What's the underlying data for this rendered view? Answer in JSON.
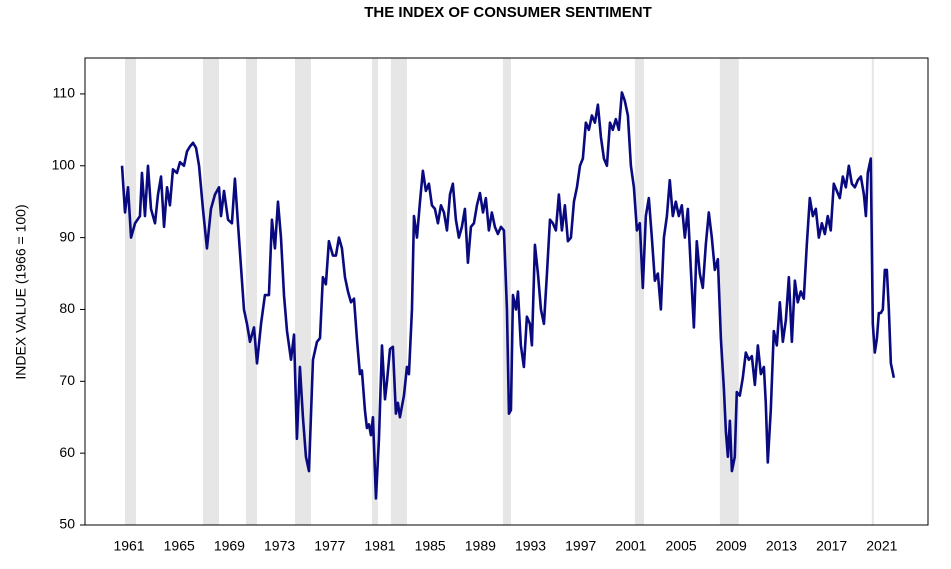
{
  "chart_data": {
    "type": "line",
    "title": "THE INDEX OF CONSUMER SENTIMENT",
    "y_label": "INDEX VALUE (1966 = 100)",
    "color": "#0a0a80",
    "shade_color": "#e6e6e6",
    "shaded_periods": [
      [
        1960.68,
        1961.56
      ],
      [
        1966.89,
        1968.17
      ],
      [
        1970.32,
        1971.2
      ],
      [
        1974.23,
        1975.5
      ],
      [
        1980.36,
        1980.84
      ],
      [
        1981.87,
        1983.15
      ],
      [
        1990.8,
        1991.44
      ],
      [
        2001.32,
        2002.04
      ],
      [
        2008.09,
        2009.6
      ],
      [
        2020.2,
        2020.36
      ]
    ],
    "xlim": [
      1957.49,
      2024.68
    ],
    "xticks": [
      1961,
      1965,
      1969,
      1973,
      1977,
      1981,
      1985,
      1989,
      1993,
      1997,
      2001,
      2005,
      2009,
      2013,
      2017,
      2021
    ],
    "ylim": [
      50,
      115
    ],
    "yticks": [
      50,
      60,
      70,
      80,
      90,
      100,
      110
    ],
    "x": [
      1960.44,
      1960.68,
      1960.92,
      1961.16,
      1961.48,
      1961.87,
      1962.03,
      1962.27,
      1962.51,
      1962.75,
      1963.07,
      1963.31,
      1963.55,
      1963.79,
      1964.03,
      1964.26,
      1964.5,
      1964.82,
      1965.06,
      1965.38,
      1965.62,
      1965.86,
      1966.1,
      1966.34,
      1966.58,
      1966.89,
      1967.21,
      1967.53,
      1967.85,
      1968.17,
      1968.33,
      1968.57,
      1968.89,
      1969.2,
      1969.44,
      1969.68,
      1969.92,
      1970.16,
      1970.4,
      1970.64,
      1970.96,
      1971.2,
      1971.52,
      1971.83,
      1972.15,
      1972.39,
      1972.63,
      1972.87,
      1973.11,
      1973.35,
      1973.59,
      1973.91,
      1974.15,
      1974.38,
      1974.62,
      1974.86,
      1975.1,
      1975.34,
      1975.66,
      1975.98,
      1976.22,
      1976.45,
      1976.69,
      1976.93,
      1977.25,
      1977.49,
      1977.73,
      1977.97,
      1978.21,
      1978.45,
      1978.69,
      1978.93,
      1979.16,
      1979.4,
      1979.56,
      1979.8,
      1979.96,
      1980.12,
      1980.28,
      1980.44,
      1980.68,
      1980.92,
      1981.16,
      1981.4,
      1981.56,
      1981.8,
      1982.03,
      1982.27,
      1982.43,
      1982.59,
      1982.91,
      1983.15,
      1983.31,
      1983.55,
      1983.71,
      1983.95,
      1984.19,
      1984.42,
      1984.66,
      1984.9,
      1985.14,
      1985.38,
      1985.62,
      1985.86,
      1986.1,
      1986.34,
      1986.58,
      1986.81,
      1987.05,
      1987.29,
      1987.53,
      1987.77,
      1988.01,
      1988.25,
      1988.49,
      1988.73,
      1988.97,
      1989.21,
      1989.44,
      1989.68,
      1989.92,
      1990.16,
      1990.4,
      1990.64,
      1990.88,
      1991.12,
      1991.28,
      1991.44,
      1991.6,
      1991.84,
      1992.0,
      1992.23,
      1992.47,
      1992.71,
      1992.95,
      1993.11,
      1993.35,
      1993.59,
      1993.83,
      1994.07,
      1994.31,
      1994.55,
      1994.78,
      1995.02,
      1995.26,
      1995.5,
      1995.74,
      1995.98,
      1996.22,
      1996.46,
      1996.7,
      1996.94,
      1997.17,
      1997.41,
      1997.65,
      1997.89,
      1998.13,
      1998.37,
      1998.61,
      1998.85,
      1999.09,
      1999.33,
      1999.56,
      1999.8,
      2000.04,
      2000.28,
      2000.52,
      2000.76,
      2001.0,
      2001.24,
      2001.48,
      2001.71,
      2001.95,
      2002.19,
      2002.43,
      2002.67,
      2002.91,
      2003.15,
      2003.39,
      2003.63,
      2003.87,
      2004.1,
      2004.34,
      2004.58,
      2004.82,
      2005.06,
      2005.3,
      2005.54,
      2005.78,
      2006.02,
      2006.25,
      2006.49,
      2006.73,
      2006.97,
      2007.21,
      2007.45,
      2007.69,
      2007.93,
      2008.17,
      2008.41,
      2008.57,
      2008.73,
      2008.89,
      2009.05,
      2009.28,
      2009.44,
      2009.68,
      2009.92,
      2010.16,
      2010.4,
      2010.64,
      2010.88,
      2011.12,
      2011.36,
      2011.6,
      2011.75,
      2011.91,
      2012.15,
      2012.39,
      2012.63,
      2012.87,
      2013.11,
      2013.35,
      2013.59,
      2013.83,
      2014.07,
      2014.3,
      2014.54,
      2014.78,
      2015.02,
      2015.26,
      2015.5,
      2015.74,
      2015.98,
      2016.22,
      2016.46,
      2016.69,
      2016.93,
      2017.17,
      2017.41,
      2017.65,
      2017.89,
      2018.13,
      2018.37,
      2018.61,
      2018.85,
      2019.09,
      2019.33,
      2019.57,
      2019.73,
      2019.88,
      2020.12,
      2020.28,
      2020.44,
      2020.61,
      2020.76,
      2020.92,
      2021.08,
      2021.24,
      2021.4,
      2021.56,
      2021.72,
      2021.96
    ],
    "values": [
      100,
      93.5,
      97,
      90,
      92,
      93,
      99,
      93,
      100,
      94,
      92,
      96,
      98.5,
      91.5,
      97,
      94.5,
      99.5,
      99,
      100.5,
      100,
      102,
      102.7,
      103.2,
      102.5,
      100,
      94,
      88.5,
      94,
      96,
      97,
      93,
      96.5,
      92.5,
      92,
      98.2,
      92,
      86,
      80,
      78,
      75.5,
      77.5,
      72.5,
      78,
      82,
      82,
      92.5,
      88.5,
      95,
      90,
      82,
      77,
      73,
      76.5,
      62,
      72,
      65,
      59.5,
      57.5,
      73,
      75.5,
      76,
      84.5,
      83.5,
      89.5,
      87.5,
      87.5,
      90,
      88.5,
      84.5,
      82.5,
      81,
      81.5,
      76,
      71,
      71.5,
      66,
      63.5,
      64,
      62.5,
      65,
      53.7,
      62,
      75,
      67.5,
      70,
      74.5,
      74.8,
      65.5,
      67,
      65,
      68,
      72,
      71,
      80,
      93,
      90,
      95,
      99.3,
      96.5,
      97.5,
      94.5,
      94,
      92,
      94.5,
      93.5,
      91,
      96,
      97.5,
      92.5,
      90,
      91.5,
      94,
      86.5,
      91.5,
      92,
      94.5,
      96.2,
      93.5,
      95.5,
      91,
      93.5,
      91.5,
      90.5,
      91.5,
      91,
      80,
      65.5,
      66,
      82,
      80,
      82.5,
      75,
      72,
      79,
      78,
      75,
      89,
      85,
      80,
      78,
      85,
      92.5,
      92,
      91,
      96,
      91,
      94.5,
      89.5,
      90,
      95,
      97,
      100,
      101,
      106,
      105,
      107,
      106,
      108.5,
      104,
      101,
      100,
      106,
      105,
      106.5,
      105,
      110.2,
      109,
      107,
      100,
      97,
      91,
      92,
      83,
      93,
      95.5,
      90,
      84,
      85,
      80,
      90,
      93,
      98,
      93,
      95,
      93,
      94.5,
      90,
      94,
      85.5,
      77.5,
      89.5,
      85,
      83,
      89,
      93.5,
      90,
      85.5,
      87,
      76,
      69,
      63,
      59.5,
      64.5,
      57.5,
      59.5,
      68.5,
      68,
      70.5,
      74,
      73,
      73.5,
      69.5,
      75,
      71,
      72,
      67,
      58.7,
      66,
      77,
      75,
      81,
      75.5,
      78.5,
      84.5,
      75.5,
      84,
      81,
      82.5,
      81.5,
      89,
      95.5,
      93,
      94,
      90,
      92,
      90.5,
      93,
      91,
      97.5,
      96.5,
      95.5,
      98.5,
      97,
      100,
      97.5,
      97,
      98,
      98.5,
      96,
      93,
      99,
      101,
      78,
      74,
      76,
      79.5,
      79.5,
      80,
      85.5,
      85.5,
      80,
      72.5,
      70.5
    ]
  }
}
